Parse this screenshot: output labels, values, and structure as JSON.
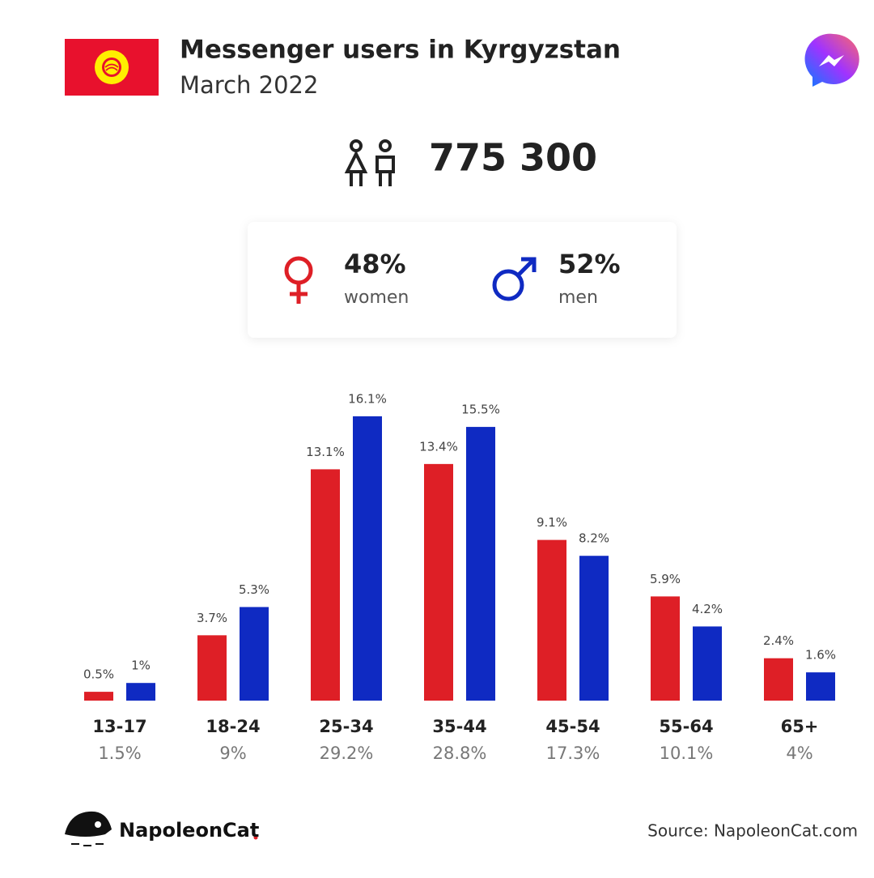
{
  "header": {
    "title": "Messenger users in Kyrgyzstan",
    "subtitle": "March 2022",
    "total": "775 300"
  },
  "chart_data": {
    "type": "bar",
    "categories": [
      "13-17",
      "18-24",
      "25-34",
      "35-44",
      "45-54",
      "55-64",
      "65+"
    ],
    "totals": [
      1.5,
      9,
      29.2,
      28.8,
      17.3,
      10.1,
      4
    ],
    "total_labels": [
      "1.5%",
      "9%",
      "29.2%",
      "28.8%",
      "17.3%",
      "10.1%",
      "4%"
    ],
    "series": [
      {
        "name": "women",
        "color": "#de1f26",
        "share": 48,
        "share_label": "48%",
        "values": [
          0.5,
          3.7,
          13.1,
          13.4,
          9.1,
          5.9,
          2.4
        ],
        "value_labels": [
          "0.5%",
          "3.7%",
          "13.1%",
          "13.4%",
          "9.1%",
          "5.9%",
          "2.4%"
        ]
      },
      {
        "name": "men",
        "color": "#0f2ac2",
        "share": 52,
        "share_label": "52%",
        "values": [
          1,
          5.3,
          16.1,
          15.5,
          8.2,
          4.2,
          1.6
        ],
        "value_labels": [
          "1%",
          "5.3%",
          "16.1%",
          "15.5%",
          "8.2%",
          "4.2%",
          "1.6%"
        ]
      }
    ]
  },
  "footer": {
    "brand": "NapoleonCat",
    "source": "Source: NapoleonCat.com"
  }
}
